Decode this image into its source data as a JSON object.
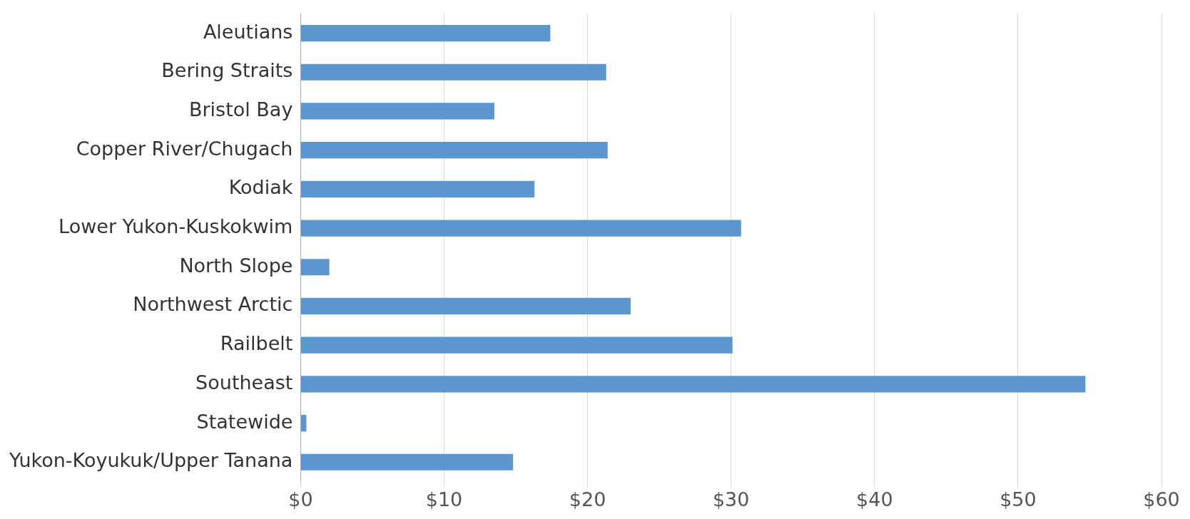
{
  "chart_data": {
    "type": "bar",
    "orientation": "horizontal",
    "categories": [
      "Aleutians",
      "Bering Straits",
      "Bristol Bay",
      "Copper River/Chugach",
      "Kodiak",
      "Lower Yukon-Kuskokwim",
      "North Slope",
      "Northwest Arctic",
      "Railbelt",
      "Southeast",
      "Statewide",
      "Yukon-Koyukuk/Upper Tanana"
    ],
    "values": [
      17.4,
      21.3,
      13.5,
      21.4,
      16.3,
      30.7,
      2.0,
      23.0,
      30.1,
      54.7,
      0.4,
      14.8
    ],
    "color": "#5b96cf",
    "xlim": [
      0,
      60
    ],
    "xticks": [
      {
        "value": 0,
        "label": "$0"
      },
      {
        "value": 10,
        "label": "$10"
      },
      {
        "value": 20,
        "label": "$20"
      },
      {
        "value": 30,
        "label": "$30"
      },
      {
        "value": 40,
        "label": "$40"
      },
      {
        "value": 50,
        "label": "$50"
      },
      {
        "value": 60,
        "label": "$60"
      }
    ],
    "grid": "x"
  }
}
